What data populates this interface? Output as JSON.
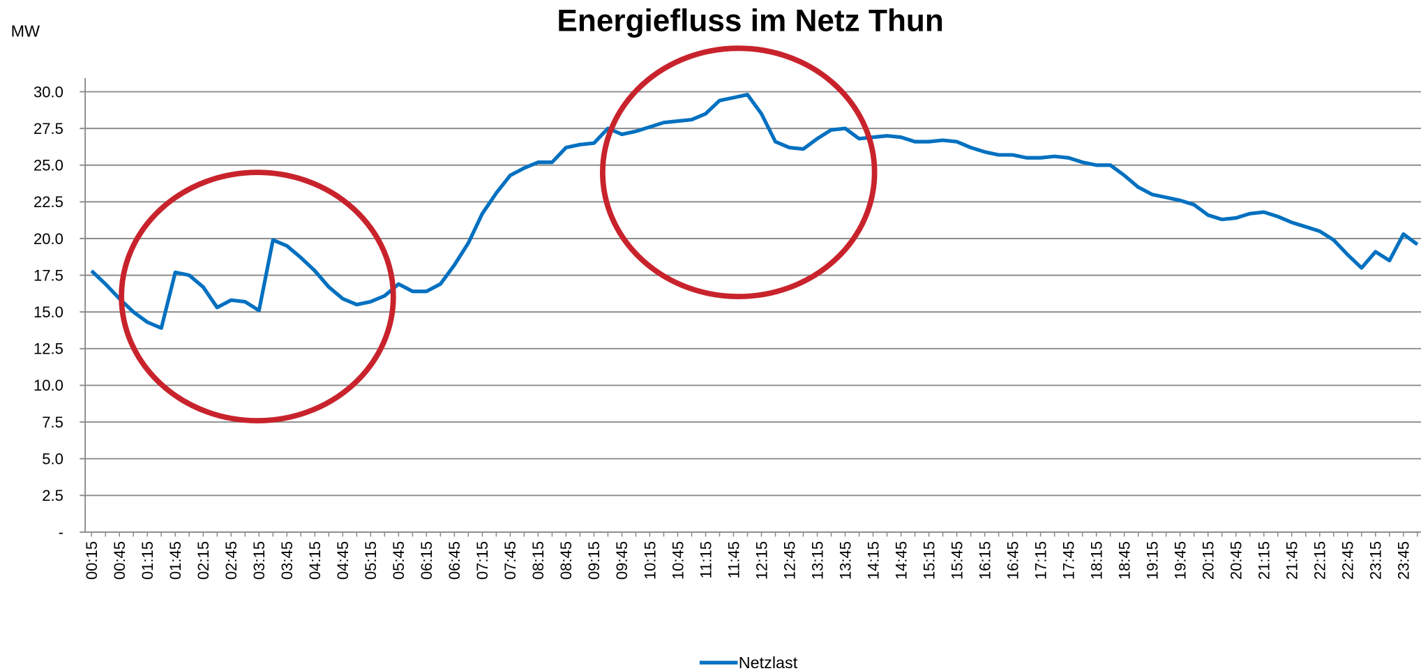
{
  "chart_data": {
    "type": "line",
    "title": "Energiefluss im Netz Thun",
    "y_label": "MW",
    "categories": [
      "00:15",
      null,
      "00:45",
      null,
      "01:15",
      null,
      "01:45",
      null,
      "02:15",
      null,
      "02:45",
      null,
      "03:15",
      null,
      "03:45",
      null,
      "04:15",
      null,
      "04:45",
      null,
      "05:15",
      null,
      "05:45",
      null,
      "06:15",
      null,
      "06:45",
      null,
      "07:15",
      null,
      "07:45",
      null,
      "08:15",
      null,
      "08:45",
      null,
      "09:15",
      null,
      "09:45",
      null,
      "10:15",
      null,
      "10:45",
      null,
      "11:15",
      null,
      "11:45",
      null,
      "12:15",
      null,
      "12:45",
      null,
      "13:15",
      null,
      "13:45",
      null,
      "14:15",
      null,
      "14:45",
      null,
      "15:15",
      null,
      "15:45",
      null,
      "16:15",
      null,
      "16:45",
      null,
      "17:15",
      null,
      "17:45",
      null,
      "18:15",
      null,
      "18:45",
      null,
      "19:15",
      null,
      "19:45",
      null,
      "20:15",
      null,
      "20:45",
      null,
      "21:15",
      null,
      "21:45",
      null,
      "22:15",
      null,
      "22:45",
      null,
      "23:15",
      null,
      "23:45",
      null
    ],
    "series": [
      {
        "name": "Netzlast",
        "color": "#0070c0",
        "values": [
          17.8,
          16.9,
          15.9,
          15.0,
          14.3,
          13.9,
          17.7,
          17.5,
          16.7,
          15.3,
          15.8,
          15.7,
          15.1,
          19.9,
          19.5,
          18.7,
          17.8,
          16.7,
          15.9,
          15.5,
          15.7,
          16.1,
          16.9,
          16.4,
          16.4,
          16.9,
          18.2,
          19.7,
          21.7,
          23.1,
          24.3,
          24.8,
          25.2,
          25.2,
          26.2,
          26.4,
          26.5,
          27.5,
          27.1,
          27.3,
          27.6,
          27.9,
          28.0,
          28.1,
          28.5,
          29.4,
          29.6,
          29.8,
          28.5,
          26.6,
          26.2,
          26.1,
          26.8,
          27.4,
          27.5,
          26.8,
          26.9,
          27.0,
          26.9,
          26.6,
          26.6,
          26.7,
          26.6,
          26.2,
          25.9,
          25.7,
          25.7,
          25.5,
          25.5,
          25.6,
          25.5,
          25.2,
          25.0,
          25.0,
          24.3,
          23.5,
          23.0,
          22.8,
          22.6,
          22.3,
          21.6,
          21.3,
          21.4,
          21.7,
          21.8,
          21.5,
          21.1,
          20.8,
          20.5,
          19.9,
          18.9,
          18.0,
          19.1,
          18.5,
          20.3,
          19.6
        ]
      }
    ],
    "ylim": [
      0,
      30
    ],
    "yticks": [
      {
        "value": 0,
        "label": "-"
      },
      2.5,
      {
        "value": 5,
        "label": "5.0"
      },
      7.5,
      {
        "value": 10,
        "label": "10.0"
      },
      12.5,
      {
        "value": 15,
        "label": "15.0"
      },
      17.5,
      {
        "value": 20,
        "label": "20.0"
      },
      22.5,
      {
        "value": 25,
        "label": "25.0"
      },
      27.5,
      {
        "value": 30,
        "label": "30.0"
      }
    ],
    "grid": true,
    "legend": "bottom"
  }
}
